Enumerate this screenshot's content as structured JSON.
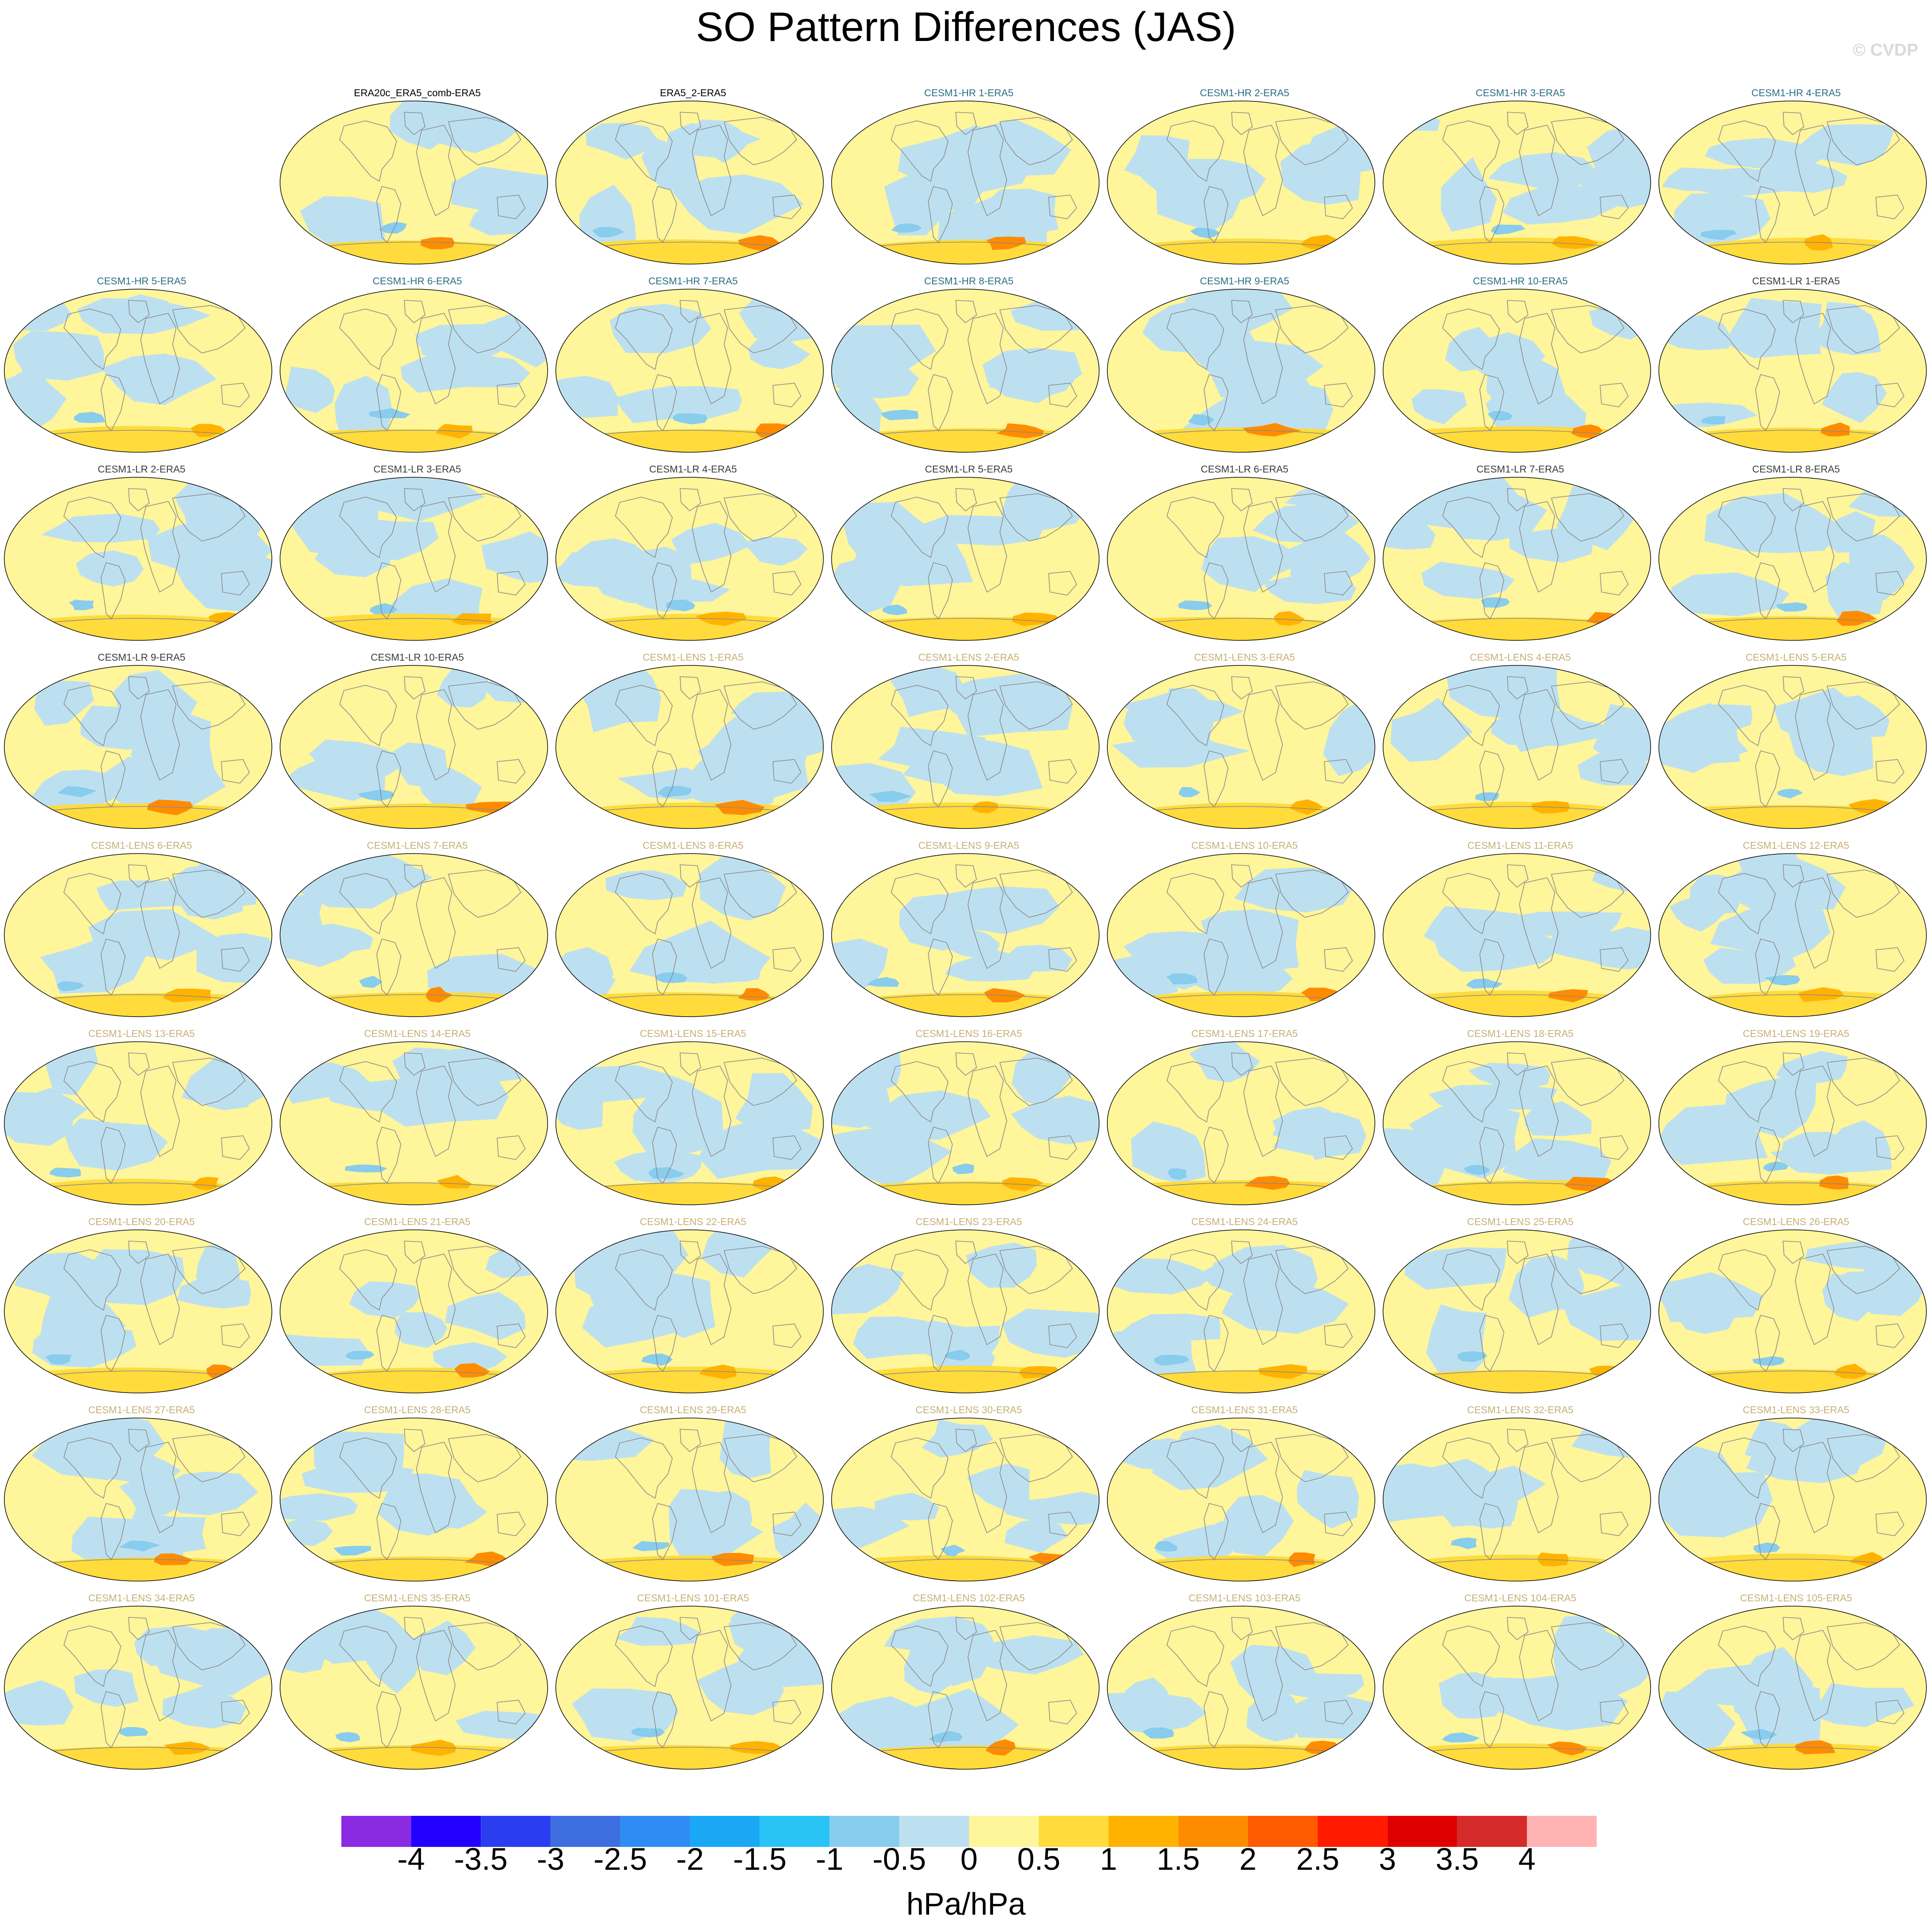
{
  "title": "SO Pattern Differences (JAS)",
  "watermark": "© CVDP",
  "chart_data": {
    "type": "map_panel_grid",
    "title": "SO Pattern Differences (JAS)",
    "projection": "Robinson-like global",
    "grid": {
      "rows": 9,
      "cols": 7,
      "first_row_empty_slots": 1
    },
    "title_colors": {
      "obs": "#000000",
      "hr": "#2a6f86",
      "lr": "#3b3b3b",
      "lens": "#c7b076"
    },
    "panels": [
      {
        "label": "ERA20c_ERA5_comb-ERA5",
        "group": "obs"
      },
      {
        "label": "ERA5_2-ERA5",
        "group": "obs"
      },
      {
        "label": "CESM1-HR 1-ERA5",
        "group": "hr"
      },
      {
        "label": "CESM1-HR 2-ERA5",
        "group": "hr"
      },
      {
        "label": "CESM1-HR 3-ERA5",
        "group": "hr"
      },
      {
        "label": "CESM1-HR 4-ERA5",
        "group": "hr"
      },
      {
        "label": "CESM1-HR 5-ERA5",
        "group": "hr"
      },
      {
        "label": "CESM1-HR 6-ERA5",
        "group": "hr"
      },
      {
        "label": "CESM1-HR 7-ERA5",
        "group": "hr"
      },
      {
        "label": "CESM1-HR 8-ERA5",
        "group": "hr"
      },
      {
        "label": "CESM1-HR 9-ERA5",
        "group": "hr"
      },
      {
        "label": "CESM1-HR 10-ERA5",
        "group": "hr"
      },
      {
        "label": "CESM1-LR 1-ERA5",
        "group": "lr"
      },
      {
        "label": "CESM1-LR 2-ERA5",
        "group": "lr"
      },
      {
        "label": "CESM1-LR 3-ERA5",
        "group": "lr"
      },
      {
        "label": "CESM1-LR 4-ERA5",
        "group": "lr"
      },
      {
        "label": "CESM1-LR 5-ERA5",
        "group": "lr"
      },
      {
        "label": "CESM1-LR 6-ERA5",
        "group": "lr"
      },
      {
        "label": "CESM1-LR 7-ERA5",
        "group": "lr"
      },
      {
        "label": "CESM1-LR 8-ERA5",
        "group": "lr"
      },
      {
        "label": "CESM1-LR 9-ERA5",
        "group": "lr"
      },
      {
        "label": "CESM1-LR 10-ERA5",
        "group": "lr"
      },
      {
        "label": "CESM1-LENS 1-ERA5",
        "group": "lens"
      },
      {
        "label": "CESM1-LENS 2-ERA5",
        "group": "lens"
      },
      {
        "label": "CESM1-LENS 3-ERA5",
        "group": "lens"
      },
      {
        "label": "CESM1-LENS 4-ERA5",
        "group": "lens"
      },
      {
        "label": "CESM1-LENS 5-ERA5",
        "group": "lens"
      },
      {
        "label": "CESM1-LENS 6-ERA5",
        "group": "lens"
      },
      {
        "label": "CESM1-LENS 7-ERA5",
        "group": "lens"
      },
      {
        "label": "CESM1-LENS 8-ERA5",
        "group": "lens"
      },
      {
        "label": "CESM1-LENS 9-ERA5",
        "group": "lens"
      },
      {
        "label": "CESM1-LENS 10-ERA5",
        "group": "lens"
      },
      {
        "label": "CESM1-LENS 11-ERA5",
        "group": "lens"
      },
      {
        "label": "CESM1-LENS 12-ERA5",
        "group": "lens"
      },
      {
        "label": "CESM1-LENS 13-ERA5",
        "group": "lens"
      },
      {
        "label": "CESM1-LENS 14-ERA5",
        "group": "lens"
      },
      {
        "label": "CESM1-LENS 15-ERA5",
        "group": "lens"
      },
      {
        "label": "CESM1-LENS 16-ERA5",
        "group": "lens"
      },
      {
        "label": "CESM1-LENS 17-ERA5",
        "group": "lens"
      },
      {
        "label": "CESM1-LENS 18-ERA5",
        "group": "lens"
      },
      {
        "label": "CESM1-LENS 19-ERA5",
        "group": "lens"
      },
      {
        "label": "CESM1-LENS 20-ERA5",
        "group": "lens"
      },
      {
        "label": "CESM1-LENS 21-ERA5",
        "group": "lens"
      },
      {
        "label": "CESM1-LENS 22-ERA5",
        "group": "lens"
      },
      {
        "label": "CESM1-LENS 23-ERA5",
        "group": "lens"
      },
      {
        "label": "CESM1-LENS 24-ERA5",
        "group": "lens"
      },
      {
        "label": "CESM1-LENS 25-ERA5",
        "group": "lens"
      },
      {
        "label": "CESM1-LENS 26-ERA5",
        "group": "lens"
      },
      {
        "label": "CESM1-LENS 27-ERA5",
        "group": "lens"
      },
      {
        "label": "CESM1-LENS 28-ERA5",
        "group": "lens"
      },
      {
        "label": "CESM1-LENS 29-ERA5",
        "group": "lens"
      },
      {
        "label": "CESM1-LENS 30-ERA5",
        "group": "lens"
      },
      {
        "label": "CESM1-LENS 31-ERA5",
        "group": "lens"
      },
      {
        "label": "CESM1-LENS 32-ERA5",
        "group": "lens"
      },
      {
        "label": "CESM1-LENS 33-ERA5",
        "group": "lens"
      },
      {
        "label": "CESM1-LENS 34-ERA5",
        "group": "lens"
      },
      {
        "label": "CESM1-LENS 35-ERA5",
        "group": "lens"
      },
      {
        "label": "CESM1-LENS 101-ERA5",
        "group": "lens"
      },
      {
        "label": "CESM1-LENS 102-ERA5",
        "group": "lens"
      },
      {
        "label": "CESM1-LENS 103-ERA5",
        "group": "lens"
      },
      {
        "label": "CESM1-LENS 104-ERA5",
        "group": "lens"
      },
      {
        "label": "CESM1-LENS 105-ERA5",
        "group": "lens"
      }
    ],
    "colorbar": {
      "units": "hPa/hPa",
      "tick_labels": [
        "-4",
        "-3.5",
        "-3",
        "-2.5",
        "-2",
        "-1.5",
        "-1",
        "-0.5",
        "0",
        "0.5",
        "1",
        "1.5",
        "2",
        "2.5",
        "3",
        "3.5",
        "4"
      ],
      "colors": [
        "#8a2be2",
        "#2200ff",
        "#2a3ef0",
        "#3d6ee0",
        "#2f8cf5",
        "#1aa8f5",
        "#29c3f5",
        "#88ccee",
        "#bde0f0",
        "#fff59a",
        "#ffdb3c",
        "#ffb300",
        "#ff8c00",
        "#ff5a00",
        "#ff1a00",
        "#de0000",
        "#d42a2a",
        "#ffb3b3"
      ]
    }
  }
}
